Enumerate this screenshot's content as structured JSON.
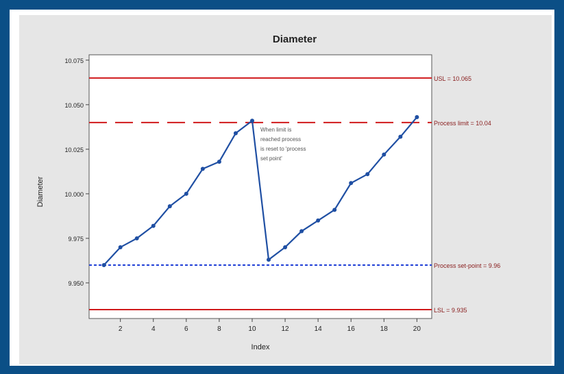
{
  "chart_data": {
    "type": "line",
    "title": "Diameter",
    "xlabel": "Index",
    "ylabel": "Diameter",
    "x": [
      1,
      2,
      3,
      4,
      5,
      6,
      7,
      8,
      9,
      10,
      11,
      12,
      13,
      14,
      15,
      16,
      17,
      18,
      19,
      20
    ],
    "values": [
      9.96,
      9.97,
      9.975,
      9.982,
      9.993,
      10.0,
      10.014,
      10.018,
      10.034,
      10.041,
      9.963,
      9.97,
      9.979,
      9.985,
      9.991,
      10.006,
      10.011,
      10.022,
      10.032,
      10.043
    ],
    "xlim": [
      0.1,
      20.9
    ],
    "ylim": [
      9.93,
      10.078
    ],
    "x_ticks": [
      2,
      4,
      6,
      8,
      10,
      12,
      14,
      16,
      18,
      20
    ],
    "y_ticks": [
      9.95,
      9.975,
      10.0,
      10.025,
      10.05,
      10.075
    ],
    "y_tick_labels": [
      "9.950",
      "9.975",
      "10.000",
      "10.025",
      "10.050",
      "10.075"
    ],
    "grid": false,
    "series_color": "#1f4fa3",
    "reference_lines": [
      {
        "value": 10.065,
        "label": "USL = 10.065",
        "style": "solid",
        "color": "#d0191b"
      },
      {
        "value": 10.04,
        "label": "Process limit = 10.04",
        "style": "dashed",
        "color": "#d0191b"
      },
      {
        "value": 9.96,
        "label": "Process set-point = 9.96",
        "style": "dotted",
        "color": "#1f3fd6"
      },
      {
        "value": 9.935,
        "label": "LSL = 9.935",
        "style": "solid",
        "color": "#d0191b"
      }
    ],
    "annotation": {
      "lines": [
        "When limit is",
        "reached process",
        "is reset to 'process",
        "set point'"
      ],
      "x": 10.5,
      "y": 10.035
    }
  }
}
